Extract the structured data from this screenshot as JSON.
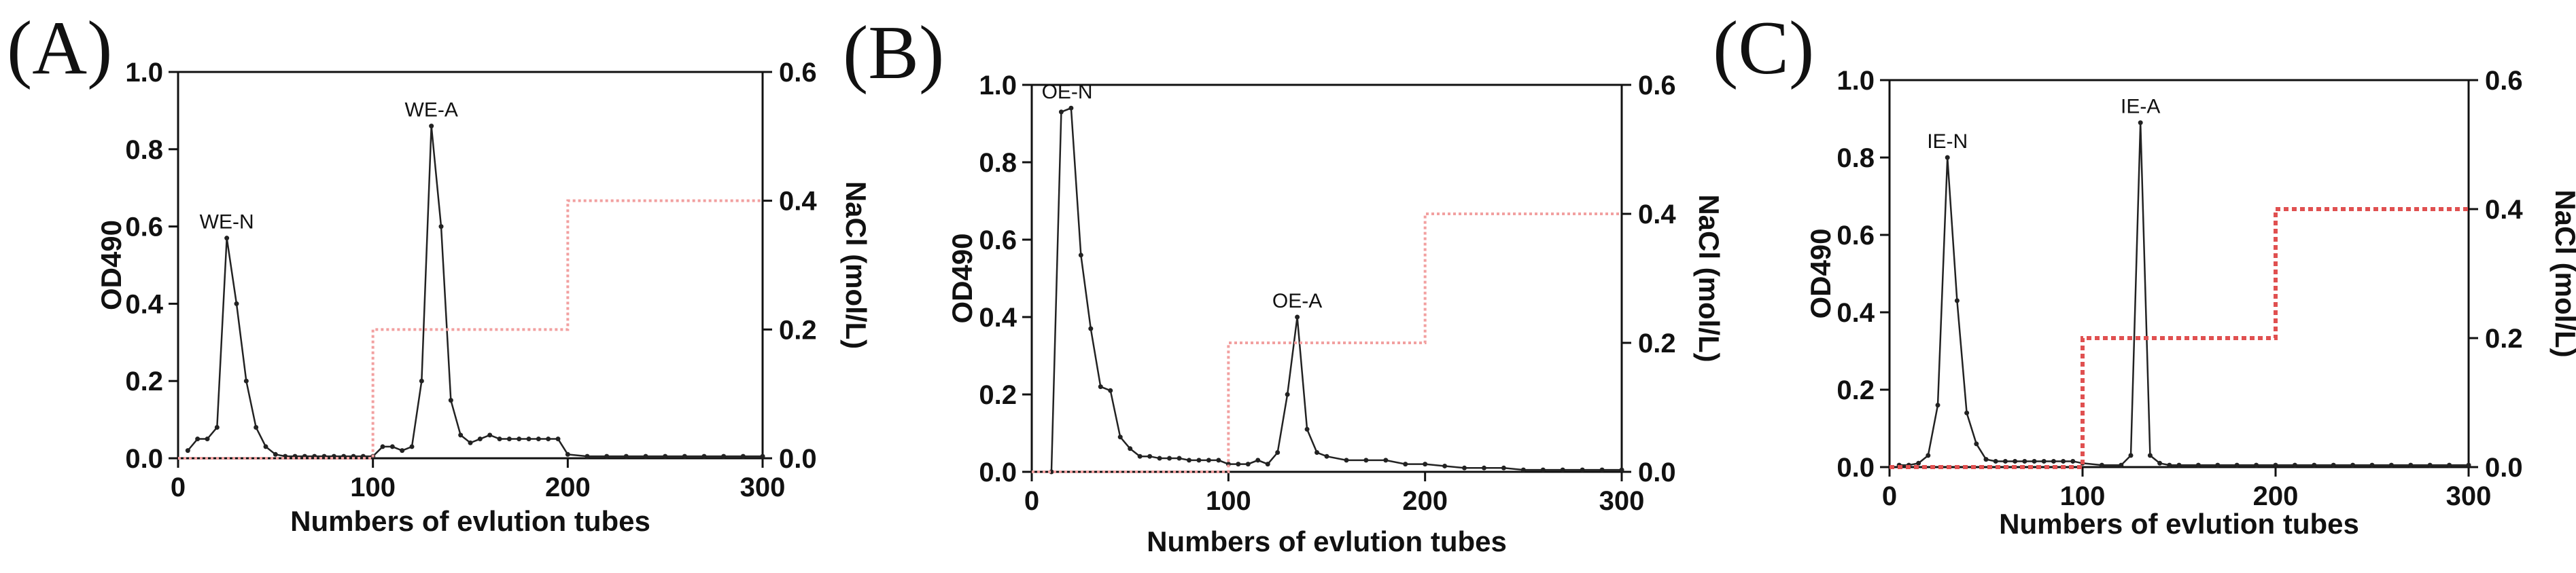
{
  "chart_data": [
    {
      "panel": "(A)",
      "type": "line",
      "xlabel": "Numbers of evlution tubes",
      "ylabel": "OD490",
      "y2label": "NaCl (mol/L)",
      "xlim": [
        0,
        300
      ],
      "ylim": [
        0,
        1.0
      ],
      "y2lim": [
        0,
        0.6
      ],
      "xticks": [
        "0",
        "100",
        "200",
        "300"
      ],
      "yticks": [
        "0.0",
        "0.2",
        "0.4",
        "0.6",
        "0.8",
        "1.0"
      ],
      "y2ticks": [
        "0.0",
        "0.2",
        "0.4",
        "0.6"
      ],
      "series": [
        {
          "name": "OD490",
          "axis": "left",
          "color": "#222222",
          "x": [
            5,
            10,
            15,
            20,
            25,
            30,
            35,
            40,
            45,
            50,
            55,
            60,
            65,
            70,
            75,
            80,
            85,
            90,
            95,
            100,
            105,
            110,
            115,
            120,
            125,
            130,
            135,
            140,
            145,
            150,
            155,
            160,
            165,
            170,
            175,
            180,
            185,
            190,
            195,
            200,
            210,
            220,
            230,
            240,
            250,
            260,
            270,
            280,
            290,
            300
          ],
          "y": [
            0.02,
            0.05,
            0.05,
            0.08,
            0.57,
            0.4,
            0.2,
            0.08,
            0.03,
            0.01,
            0.005,
            0.005,
            0.005,
            0.005,
            0.005,
            0.005,
            0.005,
            0.005,
            0.005,
            0.005,
            0.03,
            0.03,
            0.02,
            0.03,
            0.2,
            0.86,
            0.6,
            0.15,
            0.06,
            0.04,
            0.05,
            0.06,
            0.05,
            0.05,
            0.05,
            0.05,
            0.05,
            0.05,
            0.05,
            0.01,
            0.005,
            0.005,
            0.005,
            0.005,
            0.005,
            0.005,
            0.005,
            0.005,
            0.005,
            0.005
          ]
        },
        {
          "name": "NaCl",
          "axis": "right",
          "color": "#f2a0a0",
          "style": "dotted-step",
          "x": [
            0,
            100,
            100,
            200,
            200,
            300
          ],
          "y": [
            0,
            0,
            0.2,
            0.2,
            0.4,
            0.4
          ]
        }
      ],
      "annotations": [
        {
          "text": "WE-N",
          "x": 25,
          "y": 0.57
        },
        {
          "text": "WE-A",
          "x": 130,
          "y": 0.86
        }
      ]
    },
    {
      "panel": "(B)",
      "type": "line",
      "xlabel": "Numbers of evlution tubes",
      "ylabel": "OD490",
      "y2label": "NaCl (mol/L)",
      "xlim": [
        0,
        300
      ],
      "ylim": [
        0,
        1.0
      ],
      "y2lim": [
        0,
        0.6
      ],
      "xticks": [
        "0",
        "100",
        "200",
        "300"
      ],
      "yticks": [
        "0.0",
        "0.2",
        "0.4",
        "0.6",
        "0.8",
        "1.0"
      ],
      "y2ticks": [
        "0.0",
        "0.2",
        "0.4",
        "0.6"
      ],
      "series": [
        {
          "name": "OD490",
          "axis": "left",
          "color": "#222222",
          "x": [
            10,
            15,
            20,
            25,
            30,
            35,
            40,
            45,
            50,
            55,
            60,
            65,
            70,
            75,
            80,
            85,
            90,
            95,
            100,
            105,
            110,
            115,
            120,
            125,
            130,
            135,
            140,
            145,
            150,
            160,
            170,
            180,
            190,
            200,
            210,
            220,
            230,
            240,
            250,
            260,
            270,
            280,
            290,
            300
          ],
          "y": [
            0.0,
            0.93,
            0.94,
            0.56,
            0.37,
            0.22,
            0.21,
            0.09,
            0.06,
            0.04,
            0.04,
            0.035,
            0.035,
            0.035,
            0.03,
            0.03,
            0.03,
            0.03,
            0.02,
            0.02,
            0.02,
            0.03,
            0.02,
            0.05,
            0.2,
            0.4,
            0.11,
            0.05,
            0.04,
            0.03,
            0.03,
            0.03,
            0.02,
            0.02,
            0.015,
            0.01,
            0.01,
            0.01,
            0.005,
            0.005,
            0.005,
            0.005,
            0.005,
            0.005
          ]
        },
        {
          "name": "NaCl",
          "axis": "right",
          "color": "#f2a0a0",
          "style": "dotted-step",
          "x": [
            0,
            100,
            100,
            200,
            200,
            300
          ],
          "y": [
            0,
            0,
            0.2,
            0.2,
            0.4,
            0.4
          ]
        }
      ],
      "annotations": [
        {
          "text": "OE-N",
          "x": 18,
          "y": 0.94
        },
        {
          "text": "OE-A",
          "x": 135,
          "y": 0.4
        }
      ]
    },
    {
      "panel": "(C)",
      "type": "line",
      "xlabel": "Numbers of evlution tubes",
      "ylabel": "OD490",
      "y2label": "NaCl (mol/L)",
      "xlim": [
        0,
        300
      ],
      "ylim": [
        0,
        1.0
      ],
      "y2lim": [
        0,
        0.6
      ],
      "xticks": [
        "0",
        "100",
        "200",
        "300"
      ],
      "yticks": [
        "0.0",
        "0.2",
        "0.4",
        "0.6",
        "0.8",
        "1.0"
      ],
      "y2ticks": [
        "0.0",
        "0.2",
        "0.4",
        "0.6"
      ],
      "series": [
        {
          "name": "OD490",
          "axis": "left",
          "color": "#222222",
          "x": [
            5,
            10,
            15,
            20,
            25,
            30,
            35,
            40,
            45,
            50,
            55,
            60,
            65,
            70,
            75,
            80,
            85,
            90,
            95,
            100,
            110,
            120,
            125,
            130,
            135,
            140,
            145,
            150,
            160,
            170,
            180,
            190,
            200,
            210,
            220,
            230,
            240,
            250,
            260,
            270,
            280,
            290,
            300
          ],
          "y": [
            0.005,
            0.005,
            0.01,
            0.03,
            0.16,
            0.8,
            0.43,
            0.14,
            0.06,
            0.02,
            0.015,
            0.015,
            0.015,
            0.015,
            0.015,
            0.015,
            0.015,
            0.015,
            0.015,
            0.01,
            0.005,
            0.005,
            0.03,
            0.89,
            0.03,
            0.01,
            0.005,
            0.005,
            0.005,
            0.005,
            0.005,
            0.005,
            0.005,
            0.005,
            0.005,
            0.005,
            0.005,
            0.005,
            0.005,
            0.005,
            0.005,
            0.005,
            0.005
          ]
        },
        {
          "name": "NaCl",
          "axis": "right",
          "color": "#e05050",
          "style": "dotted-step",
          "x": [
            0,
            100,
            100,
            200,
            200,
            300
          ],
          "y": [
            0,
            0,
            0.2,
            0.2,
            0.4,
            0.4
          ]
        }
      ],
      "annotations": [
        {
          "text": "IE-N",
          "x": 30,
          "y": 0.8
        },
        {
          "text": "IE-A",
          "x": 130,
          "y": 0.89
        }
      ]
    }
  ]
}
